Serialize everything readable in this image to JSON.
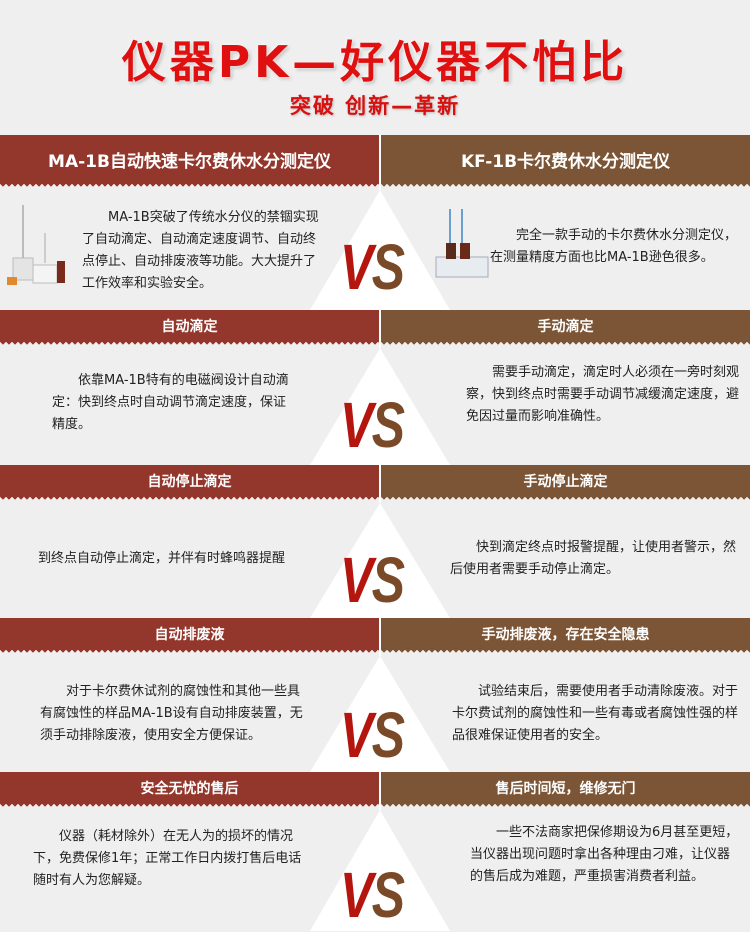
{
  "header": {
    "title": "仪器PK—好仪器不怕比",
    "subtitle": "突破  创新—革新"
  },
  "colors": {
    "left": "#93362c",
    "right": "#7b5535",
    "title": "#e01010",
    "vs_v": "#b5150f",
    "vs_s": "#7a4a28"
  },
  "vs_label": {
    "v": "V",
    "s": "S"
  },
  "sections": [
    {
      "left_title": "MA-1B自动快速卡尔费休水分测定仪",
      "right_title": "KF-1B卡尔费休水分测定仪",
      "left_text": "MA-1B突破了传统水分仪的禁锢实现了自动滴定、自动滴定速度调节、自动终点停止、自动排废液等功能。大大提升了工作效率和实验安全。",
      "right_text": "完全一款手动的卡尔费休水分测定仪，在测量精度方面也比MA-1B逊色很多。"
    },
    {
      "left_title": "自动滴定",
      "right_title": "手动滴定",
      "left_text": "依靠MA-1B特有的电磁阀设计自动滴定：快到终点时自动调节滴定速度，保证精度。",
      "right_text": "需要手动滴定，滴定时人必须在一旁时刻观察，快到终点时需要手动调节减缓滴定速度，避免因过量而影响准确性。"
    },
    {
      "left_title": "自动停止滴定",
      "right_title": "手动停止滴定",
      "left_text": "到终点自动停止滴定，并伴有时蜂鸣器提醒",
      "right_text": "快到滴定终点时报警提醒，让使用者警示，然后使用者需要手动停止滴定。"
    },
    {
      "left_title": "自动排废液",
      "right_title": "手动排废液，存在安全隐患",
      "left_text": "对于卡尔费休试剂的腐蚀性和其他一些具有腐蚀性的样品MA-1B设有自动排废装置，无须手动排除废液，使用安全方便保证。",
      "right_text": "试验结束后，需要使用者手动清除废液。对于卡尔费试剂的腐蚀性和一些有毒或者腐蚀性强的样品很难保证使用者的安全。"
    },
    {
      "left_title": "安全无忧的售后",
      "right_title": "售后时间短，维修无门",
      "left_text": "仪器（耗材除外）在无人为的损坏的情况下，免费保修1年；正常工作日内拨打售后电话随时有人为您解疑。",
      "right_text": "一些不法商家把保修期设为6月甚至更短，当仪器出现问题时拿出各种理由刁难，让仪器的售后成为难题，严重损害消费者利益。"
    }
  ]
}
